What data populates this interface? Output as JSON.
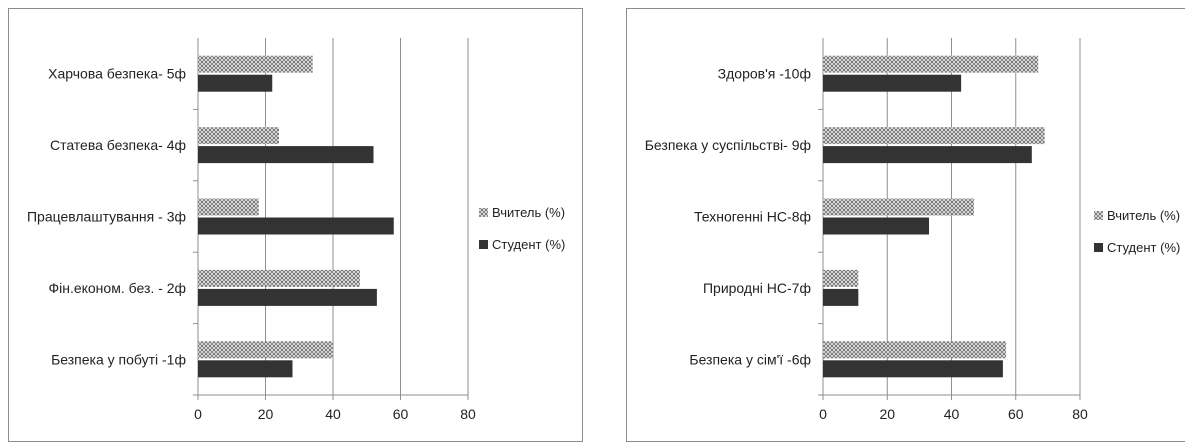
{
  "chart_data": [
    {
      "type": "bar",
      "orientation": "horizontal",
      "categories": [
        "Безпека у побуті -1ф",
        "Фін.економ. без. - 2ф",
        "Працевлаштування - 3ф",
        "Статева безпека- 4ф",
        "Харчова безпека- 5ф"
      ],
      "series": [
        {
          "name": "Вчитель (%)",
          "values": [
            40,
            48,
            18,
            24,
            34
          ],
          "pattern": "checker"
        },
        {
          "name": "Студент (%)",
          "values": [
            28,
            53,
            58,
            52,
            22
          ],
          "color": "#333333"
        }
      ],
      "xticks": [
        "0",
        "20",
        "40",
        "60",
        "80"
      ],
      "xlim": [
        0,
        80
      ],
      "grid": true,
      "legend_position": "right"
    },
    {
      "type": "bar",
      "orientation": "horizontal",
      "categories": [
        "Безпека у сім'ї -6ф",
        "Природні НС-7ф",
        "Техногенні НС-8ф",
        "Безпека у суспільстві- 9ф",
        "Здоров'я -10ф"
      ],
      "series": [
        {
          "name": "Вчитель (%)",
          "values": [
            57,
            11,
            47,
            69,
            67
          ],
          "pattern": "checker"
        },
        {
          "name": "Студент (%)",
          "values": [
            56,
            11,
            33,
            65,
            43
          ],
          "color": "#333333"
        }
      ],
      "xticks": [
        "0",
        "20",
        "40",
        "60",
        "80"
      ],
      "xlim": [
        0,
        80
      ],
      "grid": true,
      "legend_position": "right"
    }
  ]
}
